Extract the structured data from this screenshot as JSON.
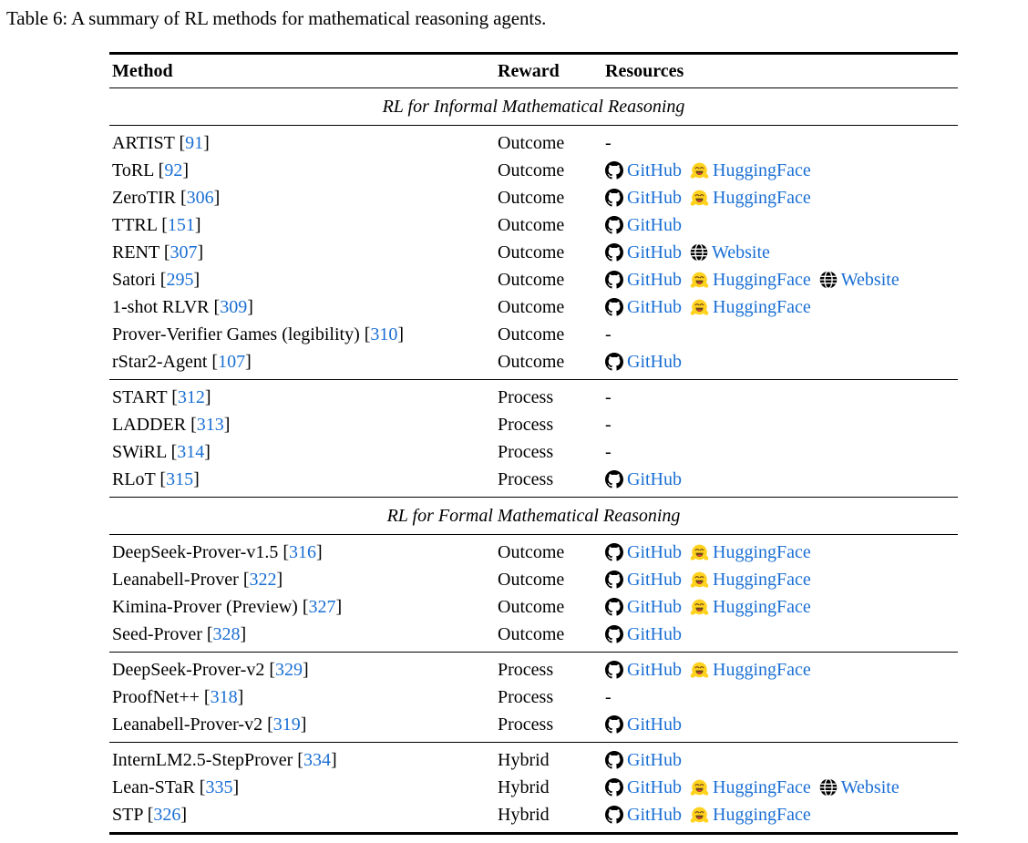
{
  "caption": "Table 6: A summary of RL methods for mathematical reasoning agents.",
  "header": {
    "method": "Method",
    "reward": "Reward",
    "resources": "Resources"
  },
  "link_labels": {
    "github": "GitHub",
    "huggingface": "HuggingFace",
    "website": "Website"
  },
  "none_marker": "-",
  "colors": {
    "link_blue": "#1a6fd4",
    "hf_yellow": "#FFD21E",
    "text": "#000000"
  },
  "icons": {
    "github": "github-icon",
    "huggingface": "huggingface-icon",
    "website": "website-icon"
  },
  "sections": [
    {
      "title": "RL for Informal Mathematical Reasoning",
      "groups": [
        {
          "rows": [
            {
              "method": "ARTIST",
              "cite": "91",
              "reward": "Outcome",
              "resources": []
            },
            {
              "method": "ToRL",
              "cite": "92",
              "reward": "Outcome",
              "resources": [
                "github",
                "huggingface"
              ]
            },
            {
              "method": "ZeroTIR",
              "cite": "306",
              "reward": "Outcome",
              "resources": [
                "github",
                "huggingface"
              ]
            },
            {
              "method": "TTRL",
              "cite": "151",
              "reward": "Outcome",
              "resources": [
                "github"
              ]
            },
            {
              "method": "RENT",
              "cite": "307",
              "reward": "Outcome",
              "resources": [
                "github",
                "website"
              ]
            },
            {
              "method": "Satori",
              "cite": "295",
              "reward": "Outcome",
              "resources": [
                "github",
                "huggingface",
                "website"
              ]
            },
            {
              "method": "1-shot RLVR",
              "cite": "309",
              "reward": "Outcome",
              "resources": [
                "github",
                "huggingface"
              ]
            },
            {
              "method": "Prover-Verifier Games (legibility)",
              "cite": "310",
              "reward": "Outcome",
              "resources": []
            },
            {
              "method": "rStar2-Agent",
              "cite": "107",
              "reward": "Outcome",
              "resources": [
                "github"
              ]
            }
          ]
        },
        {
          "rows": [
            {
              "method": "START",
              "cite": "312",
              "reward": "Process",
              "resources": []
            },
            {
              "method": "LADDER",
              "cite": "313",
              "reward": "Process",
              "resources": []
            },
            {
              "method": "SWiRL",
              "cite": "314",
              "reward": "Process",
              "resources": []
            },
            {
              "method": "RLoT",
              "cite": "315",
              "reward": "Process",
              "resources": [
                "github"
              ]
            }
          ]
        }
      ]
    },
    {
      "title": "RL for Formal Mathematical Reasoning",
      "groups": [
        {
          "rows": [
            {
              "method": "DeepSeek-Prover-v1.5",
              "cite": "316",
              "reward": "Outcome",
              "resources": [
                "github",
                "huggingface"
              ]
            },
            {
              "method": "Leanabell-Prover",
              "cite": "322",
              "reward": "Outcome",
              "resources": [
                "github",
                "huggingface"
              ]
            },
            {
              "method": "Kimina-Prover (Preview)",
              "cite": "327",
              "reward": "Outcome",
              "resources": [
                "github",
                "huggingface"
              ]
            },
            {
              "method": "Seed-Prover",
              "cite": "328",
              "reward": "Outcome",
              "resources": [
                "github"
              ]
            }
          ]
        },
        {
          "rows": [
            {
              "method": "DeepSeek-Prover-v2",
              "cite": "329",
              "reward": "Process",
              "resources": [
                "github",
                "huggingface"
              ]
            },
            {
              "method": "ProofNet++",
              "cite": "318",
              "reward": "Process",
              "resources": []
            },
            {
              "method": "Leanabell-Prover-v2",
              "cite": "319",
              "reward": "Process",
              "resources": [
                "github"
              ]
            }
          ]
        },
        {
          "rows": [
            {
              "method": "InternLM2.5-StepProver",
              "cite": "334",
              "reward": "Hybrid",
              "resources": [
                "github"
              ]
            },
            {
              "method": "Lean-STaR",
              "cite": "335",
              "reward": "Hybrid",
              "resources": [
                "github",
                "huggingface",
                "website"
              ]
            },
            {
              "method": "STP",
              "cite": "326",
              "reward": "Hybrid",
              "resources": [
                "github",
                "huggingface"
              ]
            }
          ]
        }
      ]
    }
  ]
}
